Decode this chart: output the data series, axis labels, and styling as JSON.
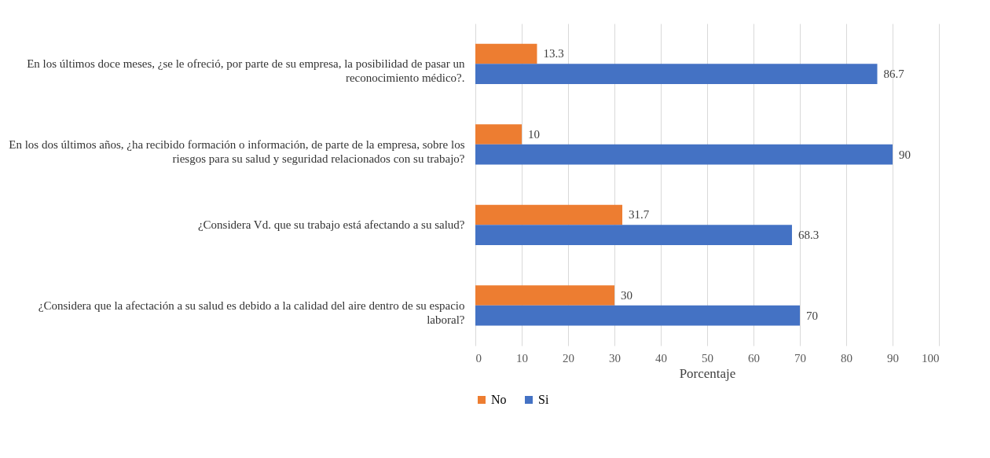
{
  "chart_data": {
    "type": "bar",
    "orientation": "horizontal",
    "xlabel": "Porcentaje",
    "categories": [
      "En los últimos doce meses, ¿se le ofreció, por parte de su empresa, la posibilidad de pasar un reconocimiento médico?.",
      "En los dos últimos años, ¿ha recibido formación o información, de parte de la empresa, sobre los riesgos para su salud y seguridad relacionados con su trabajo?",
      "¿Considera Vd. que su trabajo está afectando a su salud?",
      "¿Considera que la afectación a su salud es debido a la calidad del aire dentro de su espacio laboral?"
    ],
    "series": [
      {
        "name": "No",
        "color": "#ed7d31",
        "values": [
          13.3,
          10,
          31.7,
          30
        ]
      },
      {
        "name": "Si",
        "color": "#4472c4",
        "values": [
          86.7,
          90,
          68.3,
          70
        ]
      }
    ],
    "xlim": [
      0,
      100
    ],
    "xticks": [
      0,
      10,
      20,
      30,
      40,
      50,
      60,
      70,
      80,
      90,
      100
    ],
    "grid": "x",
    "legend": "bottom",
    "data_labels": true
  }
}
